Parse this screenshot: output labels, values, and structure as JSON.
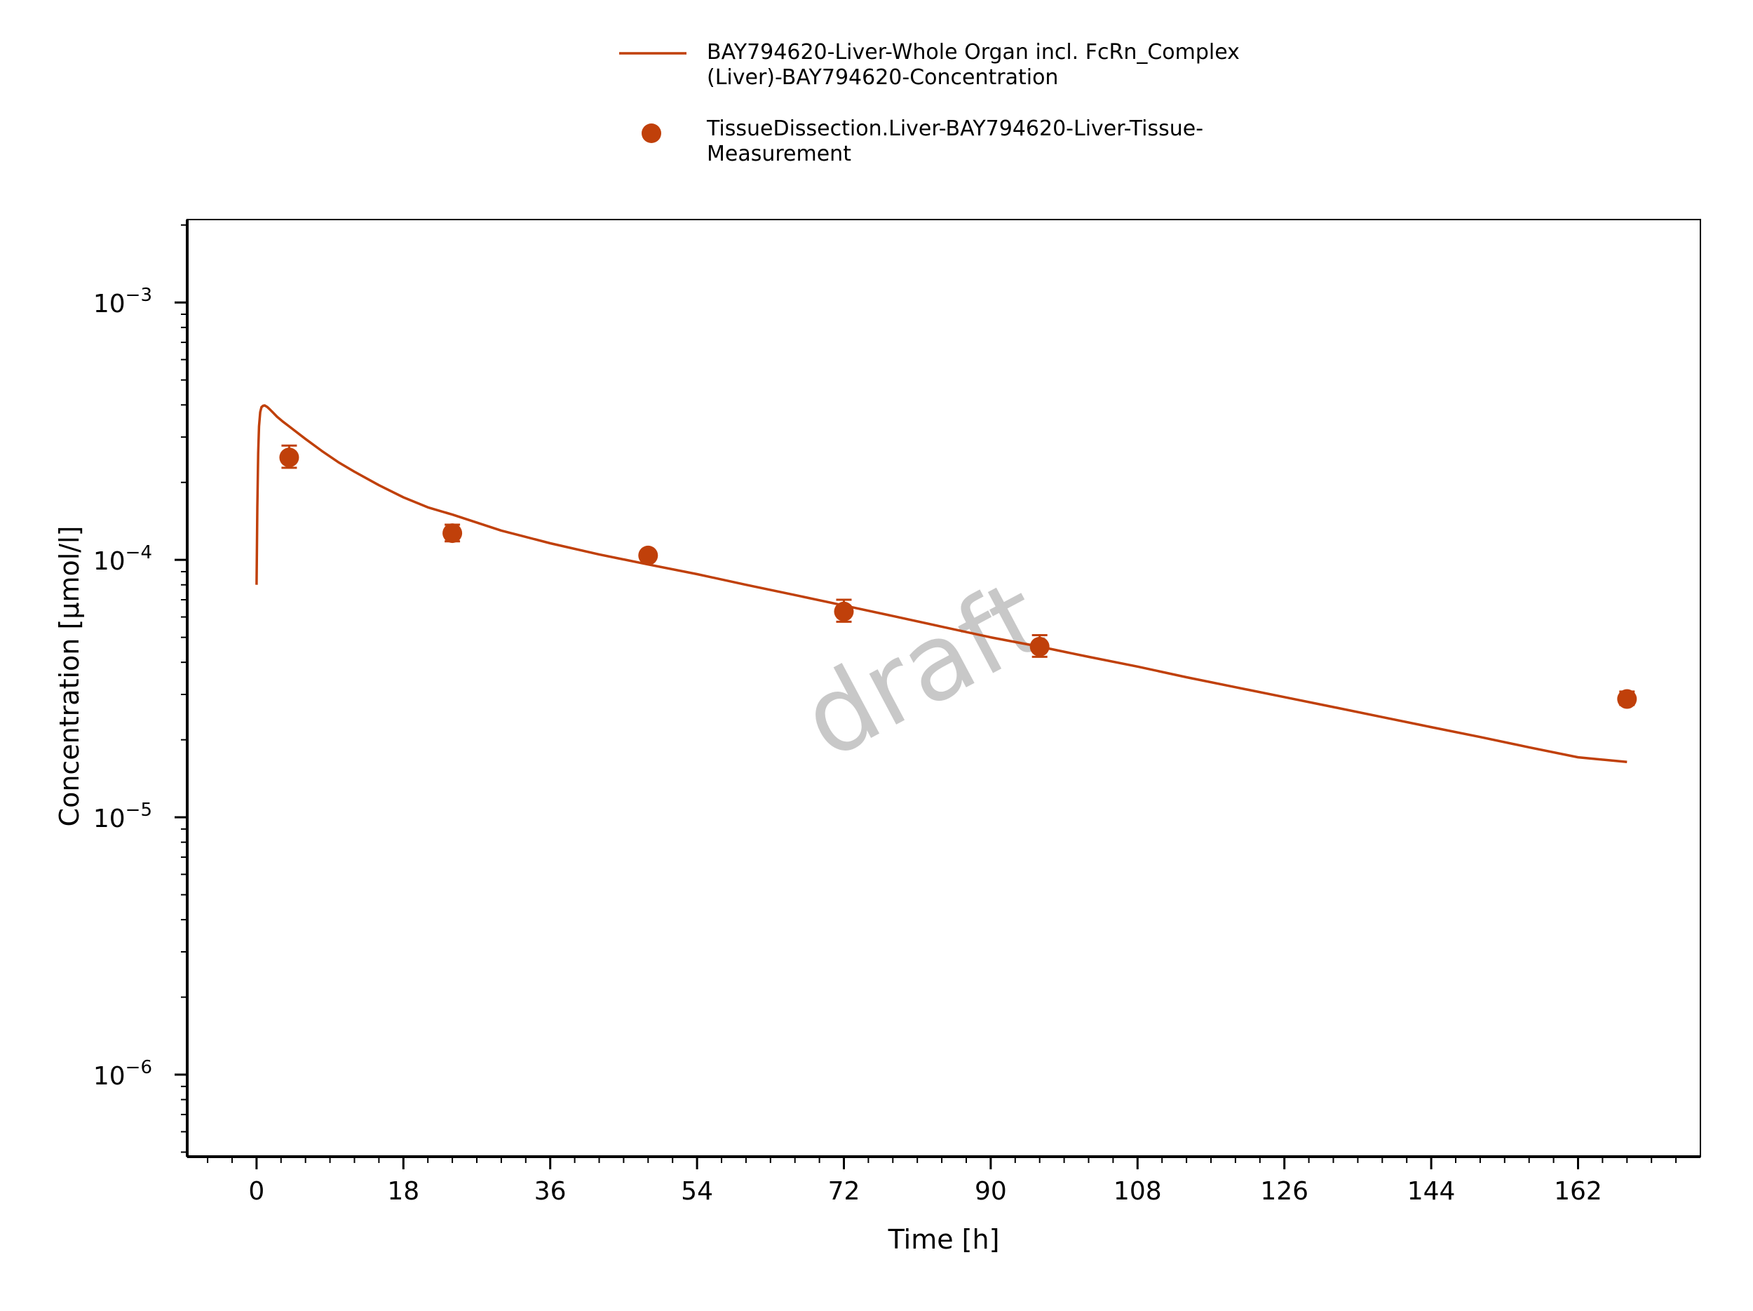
{
  "chart_data": {
    "type": "line",
    "xlabel": "Time [h]",
    "ylabel": "Concentration [µmol/l]",
    "x_scale": "linear",
    "y_scale": "log",
    "xlim": [
      -8.5,
      177
    ],
    "ylim": [
      4.8e-07,
      0.0021
    ],
    "x_ticks": [
      0,
      18,
      36,
      54,
      72,
      90,
      108,
      126,
      144,
      162
    ],
    "x_tick_labels": [
      "0",
      "18",
      "36",
      "54",
      "72",
      "90",
      "108",
      "126",
      "144",
      "162"
    ],
    "y_ticks": [
      {
        "value": 0.001,
        "base": "10",
        "exp": "−3"
      },
      {
        "value": 0.0001,
        "base": "10",
        "exp": "−4"
      },
      {
        "value": 1e-05,
        "base": "10",
        "exp": "−5"
      },
      {
        "value": 1e-06,
        "base": "10",
        "exp": "−6"
      }
    ],
    "grid": false,
    "legend_position": "top-center",
    "watermark": "draft",
    "series": [
      {
        "name": "BAY794620-Liver-Whole Organ incl. FcRn_Complex (Liver)-BAY794620-Concentration",
        "legend_lines": [
          "BAY794620-Liver-Whole Organ incl. FcRn_Complex",
          "(Liver)-BAY794620-Concentration"
        ],
        "kind": "line",
        "color": "#c0400a",
        "x": [
          0,
          0.1,
          0.2,
          0.3,
          0.45,
          0.6,
          0.8,
          1.0,
          1.3,
          1.6,
          2.0,
          2.5,
          3.2,
          4,
          6,
          8,
          10,
          12,
          15,
          18,
          21,
          24,
          30,
          36,
          42,
          48,
          54,
          60,
          66,
          72,
          78,
          84,
          90,
          96,
          102,
          108,
          114,
          120,
          126,
          132,
          138,
          144,
          150,
          156,
          162,
          168
        ],
        "y": [
          8e-05,
          0.00016,
          0.00026,
          0.00033,
          0.000375,
          0.000392,
          0.000397,
          0.000398,
          0.000393,
          0.000385,
          0.000374,
          0.00036,
          0.000345,
          0.00033,
          0.000295,
          0.000265,
          0.00024,
          0.00022,
          0.000195,
          0.000175,
          0.00016,
          0.00015,
          0.00013,
          0.000116,
          0.000105,
          9.6e-05,
          8.8e-05,
          8e-05,
          7.3e-05,
          6.65e-05,
          6.05e-05,
          5.5e-05,
          5e-05,
          4.6e-05,
          4.2e-05,
          3.85e-05,
          3.5e-05,
          3.2e-05,
          2.93e-05,
          2.68e-05,
          2.45e-05,
          2.24e-05,
          2.05e-05,
          1.87e-05,
          1.71e-05,
          1.64e-05
        ]
      },
      {
        "name": "TissueDissection.Liver-BAY794620-Liver-Tissue-Measurement",
        "legend_lines": [
          "TissueDissection.Liver-BAY794620-Liver-Tissue-",
          "Measurement"
        ],
        "kind": "scatter",
        "color": "#c0400a",
        "points": [
          {
            "x": 4,
            "y": 0.00025,
            "ylow": 0.000228,
            "yhigh": 0.000278
          },
          {
            "x": 24,
            "y": 0.000127,
            "ylow": 0.000118,
            "yhigh": 0.000137
          },
          {
            "x": 48,
            "y": 0.000104,
            "ylow": 0.0001,
            "yhigh": 0.000108
          },
          {
            "x": 72,
            "y": 6.3e-05,
            "ylow": 5.75e-05,
            "yhigh": 7e-05
          },
          {
            "x": 96,
            "y": 4.6e-05,
            "ylow": 4.2e-05,
            "yhigh": 5.1e-05
          },
          {
            "x": 168,
            "y": 2.88e-05,
            "ylow": 2.73e-05,
            "yhigh": 3.08e-05
          }
        ]
      }
    ]
  }
}
